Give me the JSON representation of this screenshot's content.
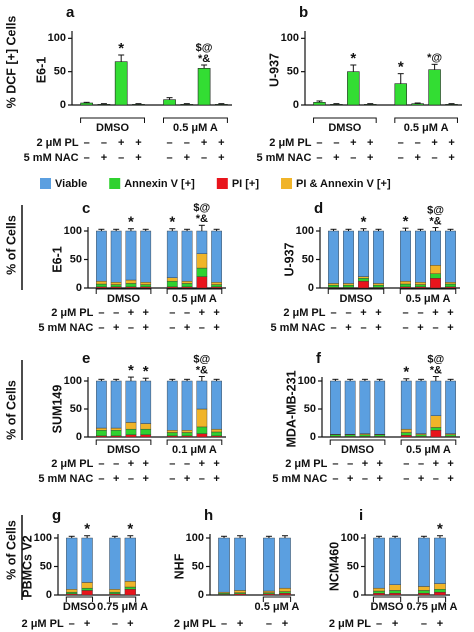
{
  "row_labels": [
    "% DCF [+] Cells",
    "% of Cells",
    "% of Cells",
    "% of Cells"
  ],
  "legend": [
    {
      "name": "Viable",
      "color": "#5b9fe0"
    },
    {
      "name": "Annexin V [+]",
      "color": "#2fd12f"
    },
    {
      "name": "PI [+]",
      "color": "#e8141c"
    },
    {
      "name": "PI & Annexin V [+]",
      "color": "#f0b429"
    }
  ],
  "chart_data": [
    {
      "type": "bar",
      "panel": "a",
      "ylabel": "E6-1",
      "color": "#33dd33",
      "ylim": [
        0,
        105
      ],
      "yticks": [
        0,
        50,
        100
      ],
      "values": [
        3,
        1,
        65,
        1,
        8,
        1,
        55,
        1
      ],
      "errors": [
        1,
        1,
        10,
        1,
        3,
        1,
        5,
        1
      ],
      "annotations": [
        null,
        null,
        [
          "*"
        ],
        null,
        null,
        null,
        [
          "$@",
          "*&"
        ],
        null
      ],
      "groups": [
        "DMSO",
        "0.5 μM A"
      ],
      "conditions": [
        {
          "label": "2 μM PL",
          "marks": [
            "–",
            "–",
            "+",
            "+",
            "–",
            "–",
            "+",
            "+"
          ]
        },
        {
          "label": "5 mM NAC",
          "marks": [
            "–",
            "+",
            "–",
            "+",
            "–",
            "+",
            "–",
            "+"
          ]
        }
      ]
    },
    {
      "type": "bar",
      "panel": "b",
      "ylabel": "U-937",
      "color": "#33dd33",
      "ylim": [
        0,
        105
      ],
      "yticks": [
        0,
        50,
        100
      ],
      "values": [
        4,
        1,
        50,
        1,
        32,
        2,
        53,
        1
      ],
      "errors": [
        2,
        1,
        10,
        1,
        15,
        1,
        8,
        1
      ],
      "annotations": [
        null,
        null,
        [
          "*"
        ],
        null,
        [
          "*"
        ],
        null,
        [
          "*@"
        ],
        null
      ],
      "groups": [
        "DMSO",
        "0.5 μM A"
      ],
      "conditions": [
        {
          "label": "2 μM PL",
          "marks": [
            "–",
            "–",
            "+",
            "+",
            "–",
            "–",
            "+",
            "+"
          ]
        },
        {
          "label": "5 mM NAC",
          "marks": [
            "–",
            "+",
            "–",
            "+",
            "–",
            "+",
            "–",
            "+"
          ]
        }
      ]
    },
    {
      "type": "stacked_bar",
      "panel": "c",
      "ylabel": "E6-1",
      "ylim": [
        0,
        100
      ],
      "yticks": [
        0,
        50,
        100
      ],
      "series": [
        {
          "values": [
            88,
            90,
            86,
            90,
            82,
            88,
            40,
            90
          ],
          "errors": [
            3,
            3,
            4,
            3,
            4,
            3,
            10,
            3
          ]
        },
        {
          "values": [
            5,
            4,
            6,
            4,
            10,
            6,
            15,
            4
          ]
        },
        {
          "values": [
            2,
            2,
            2,
            2,
            2,
            2,
            20,
            2
          ]
        },
        {
          "values": [
            5,
            4,
            6,
            4,
            6,
            4,
            25,
            4
          ]
        }
      ],
      "annotations": [
        null,
        null,
        [
          "*"
        ],
        null,
        [
          "*"
        ],
        null,
        [
          "$@",
          "*&"
        ],
        null
      ],
      "groups": [
        "DMSO",
        "0.5 μM A"
      ],
      "conditions": [
        {
          "label": "2 μM PL",
          "marks": [
            "–",
            "–",
            "+",
            "+",
            "–",
            "–",
            "+",
            "+"
          ]
        },
        {
          "label": "5 mM NAC",
          "marks": [
            "–",
            "+",
            "–",
            "+",
            "–",
            "+",
            "–",
            "+"
          ]
        }
      ]
    },
    {
      "type": "stacked_bar",
      "panel": "d",
      "ylabel": "U-937",
      "ylim": [
        0,
        100
      ],
      "yticks": [
        0,
        50,
        100
      ],
      "series": [
        {
          "values": [
            92,
            92,
            80,
            92,
            88,
            90,
            60,
            90
          ],
          "errors": [
            3,
            3,
            4,
            3,
            5,
            3,
            6,
            3
          ]
        },
        {
          "values": [
            4,
            4,
            5,
            4,
            5,
            4,
            8,
            5
          ]
        },
        {
          "values": [
            1,
            1,
            12,
            1,
            2,
            2,
            17,
            2
          ]
        },
        {
          "values": [
            3,
            3,
            3,
            3,
            5,
            4,
            15,
            3
          ]
        }
      ],
      "annotations": [
        null,
        null,
        [
          "*"
        ],
        null,
        [
          "*"
        ],
        null,
        [
          "$@",
          "*&"
        ],
        null
      ],
      "groups": [
        "DMSO",
        "0.5 μM A"
      ],
      "conditions": [
        {
          "label": "2 μM PL",
          "marks": [
            "–",
            "–",
            "+",
            "+",
            "–",
            "–",
            "+",
            "+"
          ]
        },
        {
          "label": "5 mM NAC",
          "marks": [
            "–",
            "+",
            "–",
            "+",
            "–",
            "+",
            "–",
            "+"
          ]
        }
      ]
    },
    {
      "type": "stacked_bar",
      "panel": "e",
      "ylabel": "SUM149",
      "ylim": [
        0,
        100
      ],
      "yticks": [
        0,
        50,
        100
      ],
      "series": [
        {
          "values": [
            84,
            84,
            74,
            76,
            88,
            88,
            50,
            86
          ],
          "errors": [
            3,
            3,
            7,
            5,
            3,
            3,
            8,
            3
          ]
        },
        {
          "values": [
            10,
            10,
            10,
            10,
            6,
            6,
            12,
            7
          ]
        },
        {
          "values": [
            2,
            2,
            4,
            4,
            2,
            2,
            6,
            2
          ]
        },
        {
          "values": [
            4,
            4,
            12,
            10,
            4,
            4,
            32,
            5
          ]
        }
      ],
      "annotations": [
        null,
        null,
        [
          "*"
        ],
        [
          "*"
        ],
        null,
        null,
        [
          "$@",
          "*&"
        ],
        null
      ],
      "groups": [
        "DMSO",
        "0.1 μM A"
      ],
      "conditions": [
        {
          "label": "2 μM PL",
          "marks": [
            "–",
            "–",
            "+",
            "+",
            "–",
            "–",
            "+",
            "+"
          ]
        },
        {
          "label": "5 mM NAC",
          "marks": [
            "–",
            "+",
            "–",
            "+",
            "–",
            "+",
            "–",
            "+"
          ]
        }
      ]
    },
    {
      "type": "stacked_bar",
      "panel": "f",
      "ylabel": "MDA-MB-231",
      "ylim": [
        0,
        100
      ],
      "yticks": [
        0,
        50,
        100
      ],
      "series": [
        {
          "values": [
            95,
            95,
            94,
            95,
            86,
            94,
            62,
            94
          ],
          "errors": [
            3,
            3,
            3,
            3,
            4,
            3,
            8,
            3
          ]
        },
        {
          "values": [
            3,
            3,
            3,
            3,
            5,
            3,
            5,
            3
          ]
        },
        {
          "values": [
            1,
            1,
            1,
            1,
            3,
            1,
            12,
            1
          ]
        },
        {
          "values": [
            1,
            1,
            2,
            1,
            6,
            2,
            21,
            2
          ]
        }
      ],
      "annotations": [
        null,
        null,
        null,
        null,
        [
          "*"
        ],
        null,
        [
          "$@",
          "*&"
        ],
        null
      ],
      "groups": [
        "DMSO",
        "0.5 μM A"
      ],
      "conditions": [
        {
          "label": "2 μM PL",
          "marks": [
            "–",
            "–",
            "+",
            "+",
            "–",
            "–",
            "+",
            "+"
          ]
        },
        {
          "label": "5 mM NAC",
          "marks": [
            "–",
            "+",
            "–",
            "+",
            "–",
            "+",
            "–",
            "+"
          ]
        }
      ]
    },
    {
      "type": "stacked_bar",
      "panel": "g",
      "ylabel": "PBMCs V2",
      "ylim": [
        0,
        100
      ],
      "yticks": [
        0,
        50,
        100
      ],
      "series": [
        {
          "values": [
            90,
            78,
            90,
            76
          ],
          "errors": [
            3,
            4,
            3,
            4
          ]
        },
        {
          "values": [
            3,
            4,
            3,
            4
          ]
        },
        {
          "values": [
            2,
            8,
            2,
            10
          ]
        },
        {
          "values": [
            5,
            10,
            5,
            10
          ]
        }
      ],
      "annotations": [
        null,
        [
          "*"
        ],
        null,
        [
          "*"
        ]
      ],
      "groups": [
        "DMSO",
        "0.75 μM A"
      ],
      "conditions": [
        {
          "label": "2 μM PL",
          "marks": [
            "–",
            "+",
            "–",
            "+"
          ]
        }
      ]
    },
    {
      "type": "stacked_bar",
      "panel": "h",
      "ylabel": "NHF",
      "ylim": [
        0,
        100
      ],
      "yticks": [
        0,
        50,
        100
      ],
      "series": [
        {
          "values": [
            95,
            92,
            93,
            88
          ],
          "errors": [
            3,
            4,
            3,
            4
          ]
        },
        {
          "values": [
            2,
            2,
            2,
            3
          ]
        },
        {
          "values": [
            1,
            2,
            2,
            3
          ]
        },
        {
          "values": [
            2,
            4,
            3,
            6
          ]
        }
      ],
      "annotations": [
        null,
        null,
        null,
        null
      ],
      "groups": [
        null,
        "0.5 μM A"
      ],
      "conditions": [
        {
          "label": "2 μM PL",
          "marks": [
            "–",
            "+",
            "–",
            "+"
          ]
        }
      ]
    },
    {
      "type": "stacked_bar",
      "panel": "i",
      "ylabel": "NCM460",
      "ylim": [
        0,
        100
      ],
      "yticks": [
        0,
        50,
        100
      ],
      "series": [
        {
          "values": [
            88,
            82,
            85,
            80
          ],
          "errors": [
            3,
            3,
            3,
            4
          ]
        },
        {
          "values": [
            4,
            5,
            5,
            5
          ]
        },
        {
          "values": [
            3,
            3,
            3,
            5
          ]
        },
        {
          "values": [
            5,
            10,
            7,
            10
          ]
        }
      ],
      "annotations": [
        null,
        null,
        null,
        [
          "*"
        ]
      ],
      "groups": [
        "DMSO",
        "0.75 μM A"
      ],
      "conditions": [
        {
          "label": "2 μM PL",
          "marks": [
            "–",
            "+",
            "–",
            "+"
          ]
        }
      ]
    }
  ]
}
